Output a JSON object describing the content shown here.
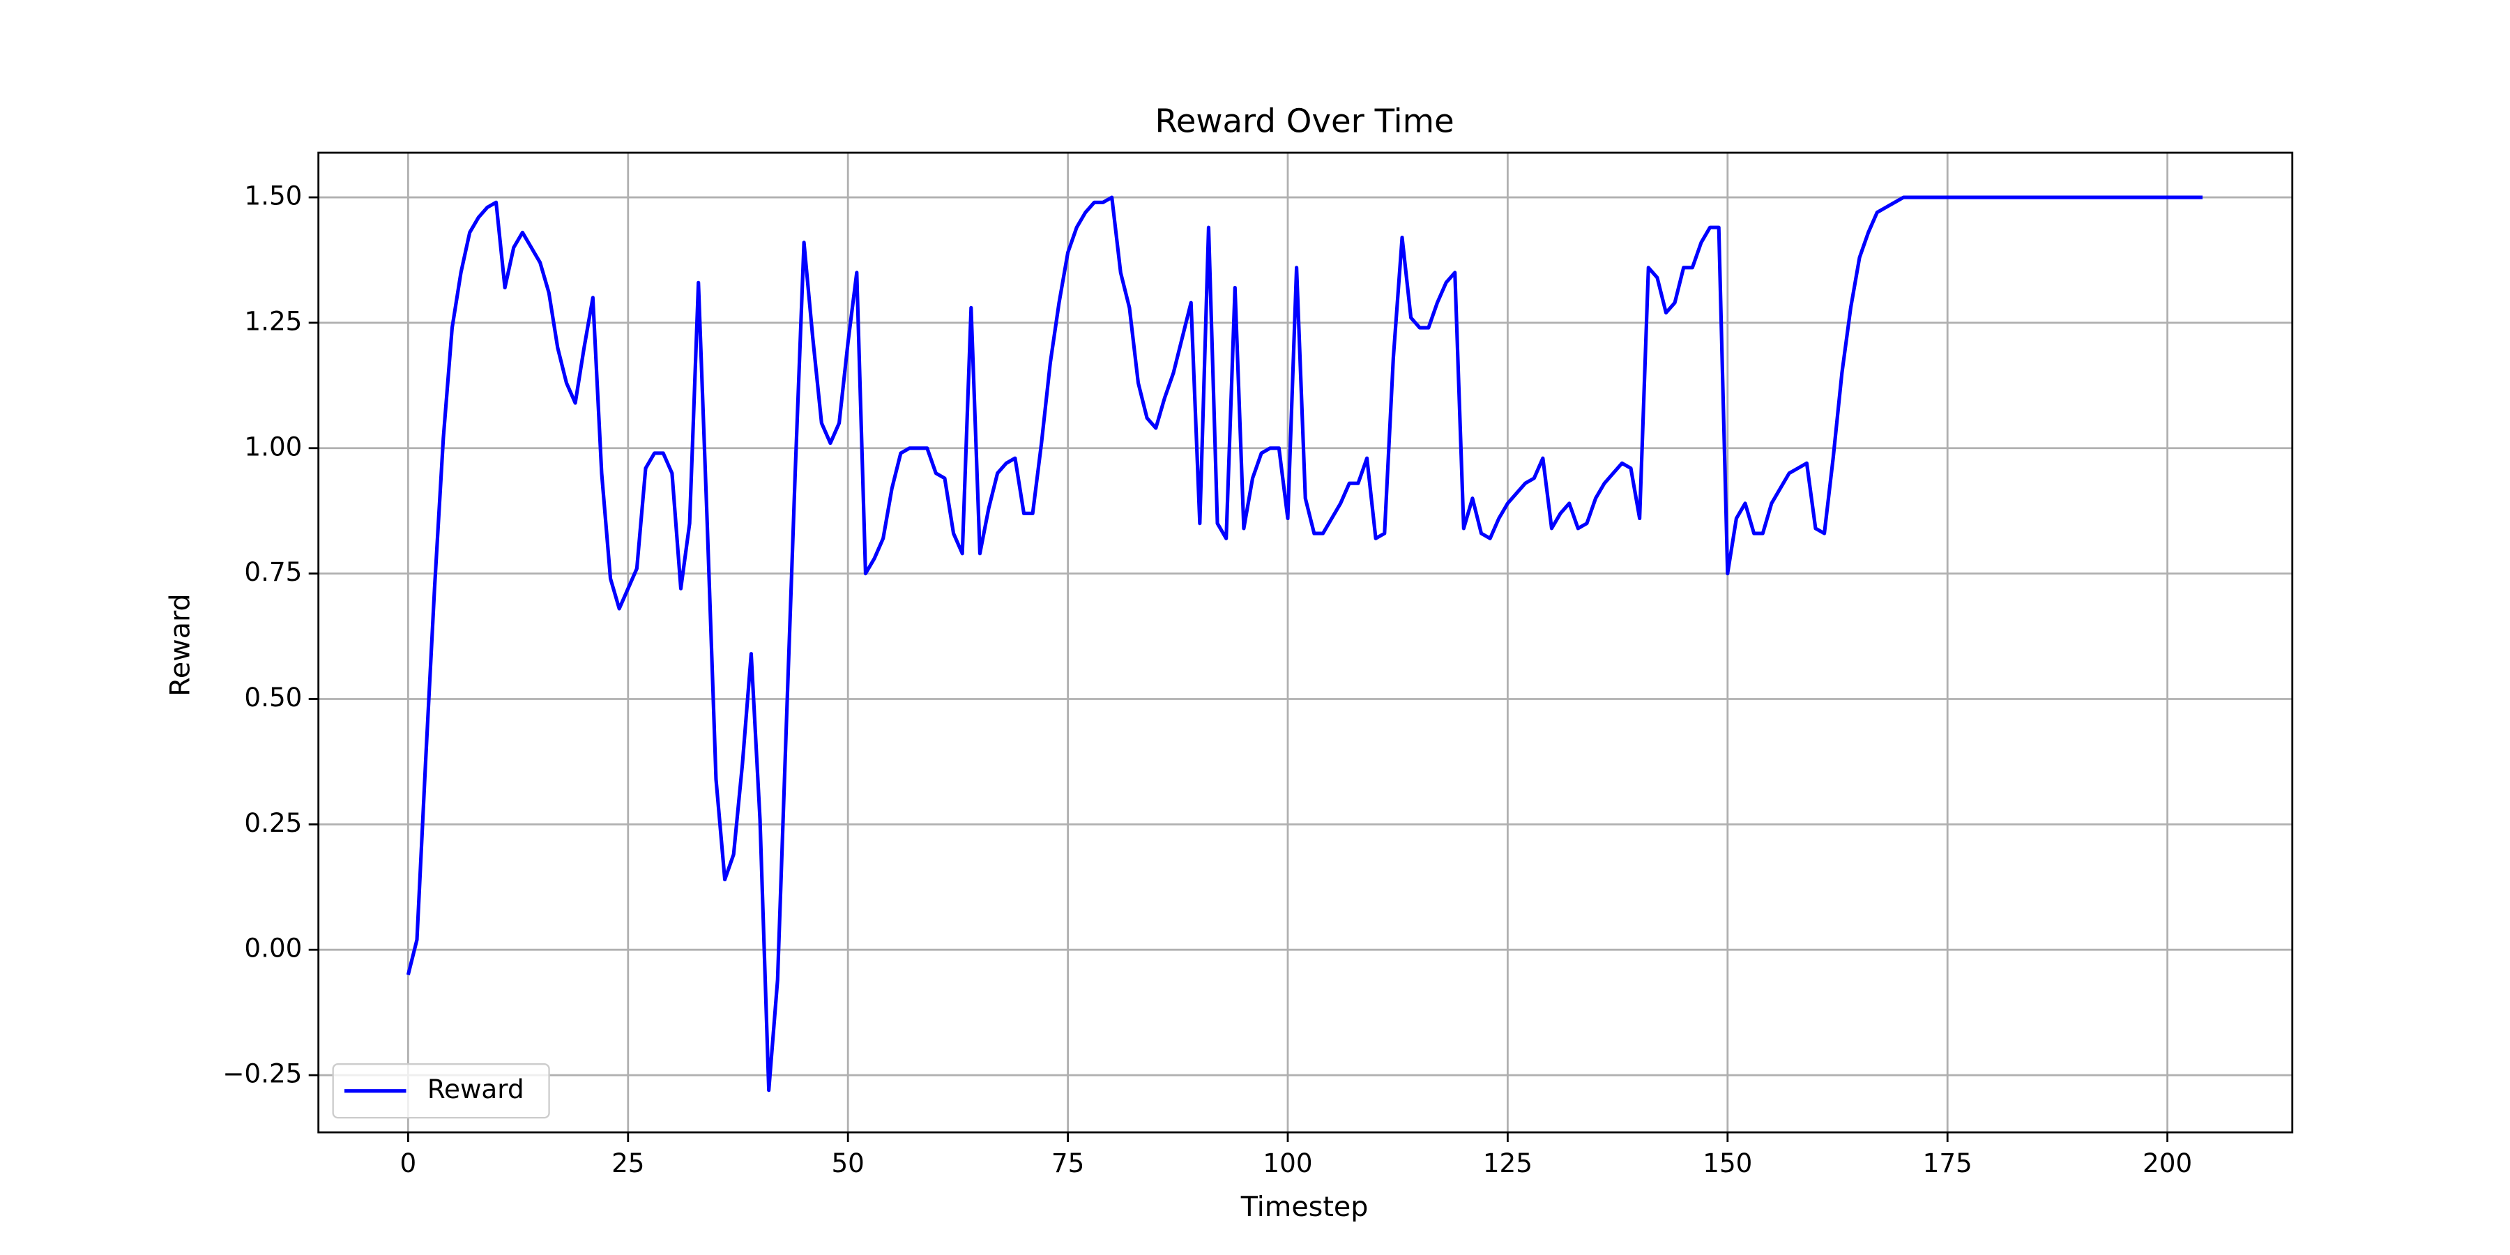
{
  "chart_data": {
    "type": "line",
    "title": "Reward Over Time",
    "x_label": "Timestep",
    "y_label": "Reward",
    "x": [
      0,
      1,
      2,
      3,
      4,
      5,
      6,
      7,
      8,
      9,
      10,
      11,
      12,
      13,
      14,
      15,
      16,
      17,
      18,
      19,
      20,
      21,
      22,
      23,
      24,
      25,
      26,
      27,
      28,
      29,
      30,
      31,
      32,
      33,
      34,
      35,
      36,
      37,
      38,
      39,
      40,
      41,
      42,
      43,
      44,
      45,
      46,
      47,
      48,
      49,
      50,
      51,
      52,
      53,
      54,
      55,
      56,
      57,
      58,
      59,
      60,
      61,
      62,
      63,
      64,
      65,
      66,
      67,
      68,
      69,
      70,
      71,
      72,
      73,
      74,
      75,
      76,
      77,
      78,
      79,
      80,
      81,
      82,
      83,
      84,
      85,
      86,
      87,
      88,
      89,
      90,
      91,
      92,
      93,
      94,
      95,
      96,
      97,
      98,
      99,
      100,
      101,
      102,
      103,
      104,
      105,
      106,
      107,
      108,
      109,
      110,
      111,
      112,
      113,
      114,
      115,
      116,
      117,
      118,
      119,
      120,
      121,
      122,
      123,
      124,
      125,
      126,
      127,
      128,
      129,
      130,
      131,
      132,
      133,
      134,
      135,
      136,
      137,
      138,
      139,
      140,
      141,
      142,
      143,
      144,
      145,
      146,
      147,
      148,
      149,
      150,
      151,
      152,
      153,
      154,
      155,
      156,
      157,
      158,
      159,
      160,
      161,
      162,
      163,
      164,
      165,
      166,
      167,
      168,
      169,
      170,
      171,
      172,
      173,
      174,
      175,
      176,
      177,
      178,
      179,
      180,
      181,
      182,
      183,
      184,
      185,
      186,
      187,
      188,
      189,
      190,
      191,
      192,
      193,
      194,
      195,
      196,
      197,
      198,
      199,
      200,
      201,
      202,
      203,
      204
    ],
    "series": [
      {
        "name": "Reward",
        "color": "#0000ff",
        "values": [
          -0.05,
          0.02,
          0.38,
          0.72,
          1.02,
          1.24,
          1.35,
          1.43,
          1.46,
          1.48,
          1.49,
          1.32,
          1.4,
          1.43,
          1.4,
          1.37,
          1.31,
          1.2,
          1.13,
          1.09,
          1.2,
          1.3,
          0.95,
          0.74,
          0.68,
          0.72,
          0.76,
          0.96,
          0.99,
          0.99,
          0.95,
          0.72,
          0.85,
          1.33,
          0.85,
          0.34,
          0.14,
          0.19,
          0.37,
          0.59,
          0.26,
          -0.28,
          -0.06,
          0.45,
          0.95,
          1.41,
          1.22,
          1.05,
          1.01,
          1.05,
          1.21,
          1.35,
          0.75,
          0.78,
          0.82,
          0.92,
          0.99,
          1.0,
          1.0,
          1.0,
          0.95,
          0.94,
          0.83,
          0.79,
          1.28,
          0.79,
          0.88,
          0.95,
          0.97,
          0.98,
          0.87,
          0.87,
          1.01,
          1.17,
          1.29,
          1.39,
          1.44,
          1.47,
          1.49,
          1.49,
          1.5,
          1.35,
          1.28,
          1.13,
          1.06,
          1.04,
          1.1,
          1.15,
          1.22,
          1.29,
          0.85,
          1.44,
          0.85,
          0.82,
          1.32,
          0.84,
          0.94,
          0.99,
          1.0,
          1.0,
          0.86,
          1.36,
          0.9,
          0.83,
          0.83,
          0.86,
          0.89,
          0.93,
          0.93,
          0.98,
          0.82,
          0.83,
          1.18,
          1.42,
          1.26,
          1.24,
          1.24,
          1.29,
          1.33,
          1.35,
          0.84,
          0.9,
          0.83,
          0.82,
          0.86,
          0.89,
          0.91,
          0.93,
          0.94,
          0.98,
          0.84,
          0.87,
          0.89,
          0.84,
          0.85,
          0.9,
          0.93,
          0.95,
          0.97,
          0.96,
          0.86,
          1.36,
          1.34,
          1.27,
          1.29,
          1.36,
          1.36,
          1.41,
          1.44,
          1.44,
          0.75,
          0.86,
          0.89,
          0.83,
          0.83,
          0.89,
          0.92,
          0.95,
          0.96,
          0.97,
          0.84,
          0.83,
          0.98,
          1.15,
          1.28,
          1.38,
          1.43,
          1.47,
          1.48,
          1.49,
          1.5,
          1.5,
          1.5,
          1.5,
          1.5,
          1.5,
          1.5,
          1.5,
          1.5,
          1.5,
          1.5,
          1.5,
          1.5,
          1.5,
          1.5,
          1.5,
          1.5,
          1.5,
          1.5,
          1.5,
          1.5,
          1.5,
          1.5,
          1.5,
          1.5,
          1.5,
          1.5,
          1.5,
          1.5,
          1.5,
          1.5,
          1.5,
          1.5,
          1.5,
          1.5
        ]
      }
    ],
    "xlim": [
      -10.2,
      214.2
    ],
    "ylim": [
      -0.364,
      1.589
    ],
    "xticks": [
      0,
      25,
      50,
      75,
      100,
      125,
      150,
      175,
      200
    ],
    "yticks": [
      {
        "value": -0.25,
        "label": "−0.25"
      },
      {
        "value": 0,
        "label": "0.00"
      },
      {
        "value": 0.25,
        "label": "0.25"
      },
      {
        "value": 0.5,
        "label": "0.50"
      },
      {
        "value": 0.75,
        "label": "0.75"
      },
      {
        "value": 1,
        "label": "1.00"
      },
      {
        "value": 1.25,
        "label": "1.25"
      },
      {
        "value": 1.5,
        "label": "1.50"
      }
    ],
    "grid": true,
    "legend": "lower left"
  }
}
